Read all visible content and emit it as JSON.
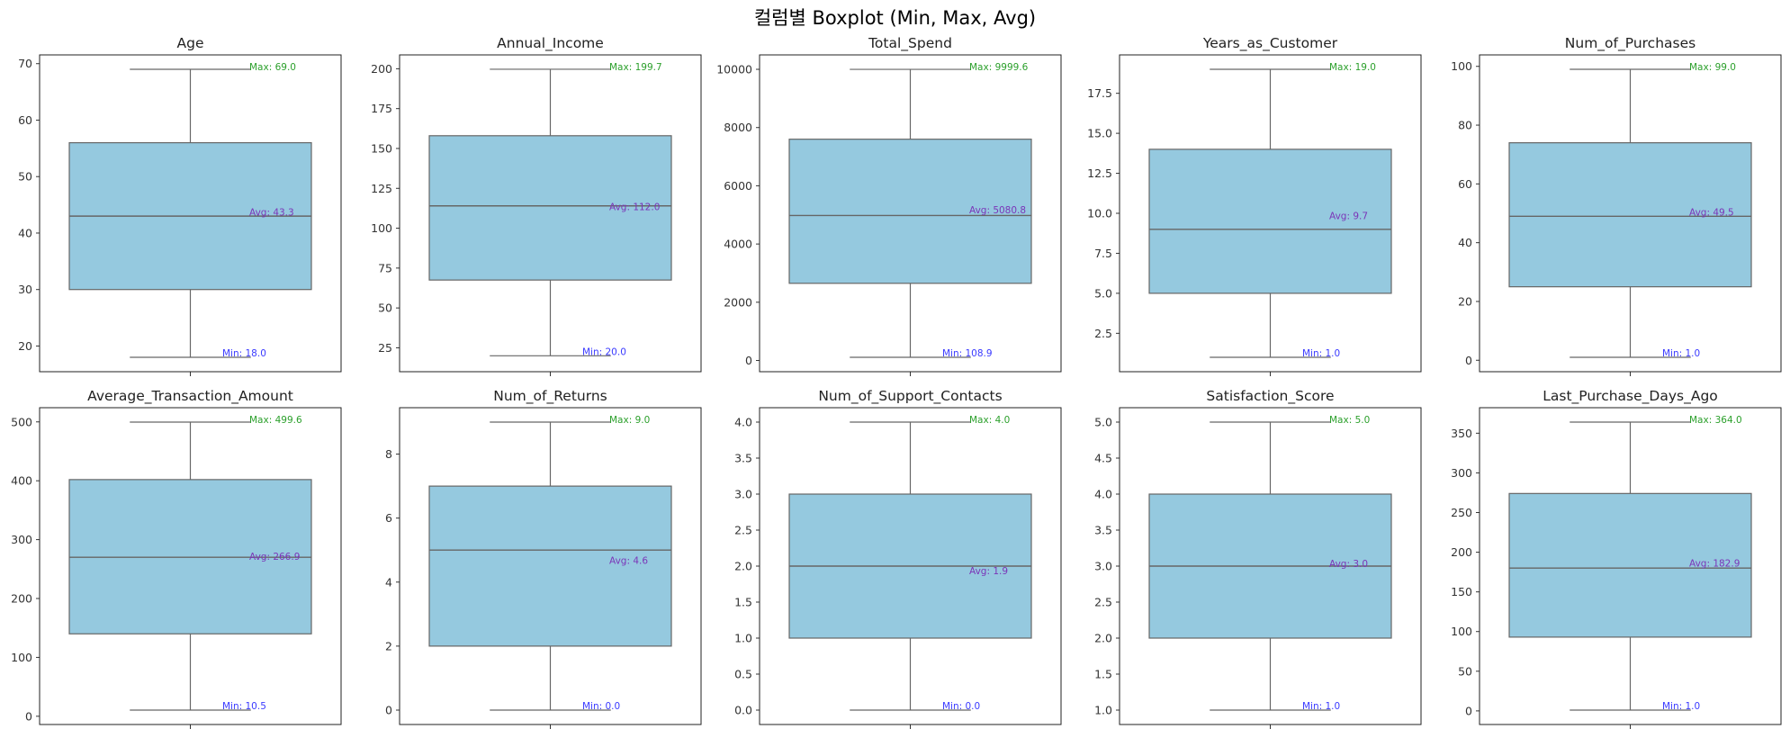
{
  "title": "컬럼별 Boxplot (Min, Max, Avg)",
  "colors": {
    "box_fill": "#95c9df",
    "box_edge": "#666666",
    "max": "#2ca02c",
    "avg": "#7b35b8",
    "min": "#3a3aff"
  },
  "chart_data": [
    {
      "type": "box",
      "title": "Age",
      "yticks": [
        "20",
        "30",
        "40",
        "50",
        "60",
        "70"
      ],
      "ytick_values": [
        20,
        30,
        40,
        50,
        60,
        70
      ],
      "ylim": [
        15.45,
        71.55
      ],
      "min": 18,
      "q1": 30,
      "median": 43,
      "q3": 56,
      "max": 69,
      "avg": 43.3,
      "labels": {
        "max": "Max: 69.0",
        "avg": "Avg: 43.3",
        "min": "Min: 18.0"
      }
    },
    {
      "type": "box",
      "title": "Annual_Income",
      "yticks": [
        "25",
        "50",
        "75",
        "100",
        "125",
        "150",
        "175",
        "200"
      ],
      "ytick_values": [
        25,
        50,
        75,
        100,
        125,
        150,
        175,
        200
      ],
      "ylim": [
        10.015,
        208.685
      ],
      "min": 20,
      "q1": 67.5,
      "median": 114,
      "q3": 158,
      "max": 199.7,
      "avg": 112.0,
      "labels": {
        "max": "Max: 199.7",
        "avg": "Avg: 112.0",
        "min": "Min: 20.0"
      }
    },
    {
      "type": "box",
      "title": "Total_Spend",
      "yticks": [
        "0",
        "2000",
        "4000",
        "6000",
        "8000",
        "10000"
      ],
      "ytick_values": [
        0,
        2000,
        4000,
        6000,
        8000,
        10000
      ],
      "ylim": [
        -385.635,
        10495.4
      ],
      "min": 108.9,
      "q1": 2650,
      "median": 4980,
      "q3": 7600,
      "max": 9999.6,
      "avg": 5080.8,
      "labels": {
        "max": "Max: 9999.6",
        "avg": "Avg: 5080.8",
        "min": "Min: 108.9"
      }
    },
    {
      "type": "box",
      "title": "Years_as_Customer",
      "yticks": [
        "2.5",
        "5.0",
        "7.5",
        "10.0",
        "12.5",
        "15.0",
        "17.5"
      ],
      "ytick_values": [
        2.5,
        5,
        7.5,
        10,
        12.5,
        15,
        17.5
      ],
      "ylim": [
        0.1,
        19.9
      ],
      "min": 1,
      "q1": 5,
      "median": 9,
      "q3": 14,
      "max": 19,
      "avg": 9.7,
      "labels": {
        "max": "Max: 19.0",
        "avg": "Avg: 9.7",
        "min": "Min: 1.0"
      }
    },
    {
      "type": "box",
      "title": "Num_of_Purchases",
      "yticks": [
        "0",
        "20",
        "40",
        "60",
        "80",
        "100"
      ],
      "ytick_values": [
        0,
        20,
        40,
        60,
        80,
        100
      ],
      "ylim": [
        -3.9,
        103.9
      ],
      "min": 1,
      "q1": 25,
      "median": 49,
      "q3": 74,
      "max": 99,
      "avg": 49.5,
      "labels": {
        "max": "Max: 99.0",
        "avg": "Avg: 49.5",
        "min": "Min: 1.0"
      }
    },
    {
      "type": "box",
      "title": "Average_Transaction_Amount",
      "yticks": [
        "0",
        "100",
        "200",
        "300",
        "400",
        "500"
      ],
      "ytick_values": [
        0,
        100,
        200,
        300,
        400,
        500
      ],
      "ylim": [
        -14.0,
        524.1
      ],
      "min": 10.5,
      "q1": 140,
      "median": 270,
      "q3": 402,
      "max": 499.6,
      "avg": 266.9,
      "labels": {
        "max": "Max: 499.6",
        "avg": "Avg: 266.9",
        "min": "Min: 10.5"
      }
    },
    {
      "type": "box",
      "title": "Num_of_Returns",
      "yticks": [
        "0",
        "2",
        "4",
        "6",
        "8"
      ],
      "ytick_values": [
        0,
        2,
        4,
        6,
        8
      ],
      "ylim": [
        -0.45,
        9.45
      ],
      "min": 0,
      "q1": 2,
      "median": 5,
      "q3": 7,
      "max": 9,
      "avg": 4.6,
      "labels": {
        "max": "Max: 9.0",
        "avg": "Avg: 4.6",
        "min": "Min: 0.0"
      }
    },
    {
      "type": "box",
      "title": "Num_of_Support_Contacts",
      "yticks": [
        "0.0",
        "0.5",
        "1.0",
        "1.5",
        "2.0",
        "2.5",
        "3.0",
        "3.5",
        "4.0"
      ],
      "ytick_values": [
        0,
        0.5,
        1,
        1.5,
        2,
        2.5,
        3,
        3.5,
        4
      ],
      "ylim": [
        -0.2,
        4.2
      ],
      "min": 0,
      "q1": 1,
      "median": 2,
      "q3": 3,
      "max": 4,
      "avg": 1.9,
      "labels": {
        "max": "Max: 4.0",
        "avg": "Avg: 1.9",
        "min": "Min: 0.0"
      }
    },
    {
      "type": "box",
      "title": "Satisfaction_Score",
      "yticks": [
        "1.0",
        "1.5",
        "2.0",
        "2.5",
        "3.0",
        "3.5",
        "4.0",
        "4.5",
        "5.0"
      ],
      "ytick_values": [
        1,
        1.5,
        2,
        2.5,
        3,
        3.5,
        4,
        4.5,
        5
      ],
      "ylim": [
        0.8,
        5.2
      ],
      "min": 1,
      "q1": 2,
      "median": 3,
      "q3": 4,
      "max": 5,
      "avg": 3.0,
      "labels": {
        "max": "Max: 5.0",
        "avg": "Avg: 3.0",
        "min": "Min: 1.0"
      }
    },
    {
      "type": "box",
      "title": "Last_Purchase_Days_Ago",
      "yticks": [
        "0",
        "50",
        "100",
        "150",
        "200",
        "250",
        "300",
        "350"
      ],
      "ytick_values": [
        0,
        50,
        100,
        150,
        200,
        250,
        300,
        350
      ],
      "ylim": [
        -17.15,
        382.15
      ],
      "min": 1,
      "q1": 93,
      "median": 180,
      "q3": 274,
      "max": 364,
      "avg": 182.9,
      "labels": {
        "max": "Max: 364.0",
        "avg": "Avg: 182.9",
        "min": "Min: 1.0"
      }
    }
  ]
}
